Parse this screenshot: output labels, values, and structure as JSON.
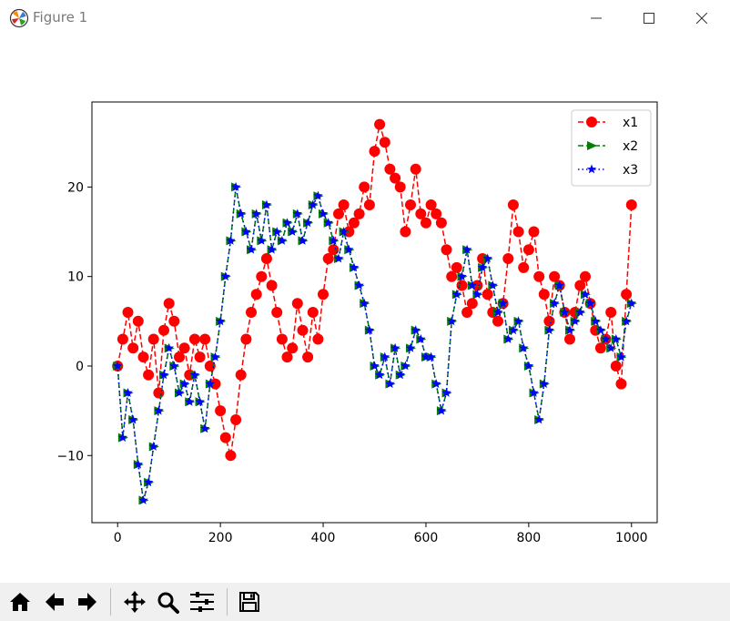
{
  "window": {
    "title": "Figure 1",
    "icon": "matplotlib-icon",
    "controls": [
      "minimize-icon",
      "maximize-icon",
      "close-icon"
    ]
  },
  "toolbar": {
    "buttons": [
      "home-icon",
      "back-arrow-icon",
      "forward-arrow-icon",
      "pan-icon",
      "zoom-icon",
      "configure-subplots-icon",
      "save-icon"
    ]
  },
  "chart_data": {
    "type": "line",
    "title": "",
    "xlabel": "",
    "ylabel": "",
    "xlim": [
      -50,
      1050
    ],
    "ylim": [
      -17.5,
      29.5
    ],
    "xticks": [
      0,
      200,
      400,
      600,
      800,
      1000
    ],
    "xtick_labels": [
      "0",
      "200",
      "400",
      "600",
      "800",
      "1000"
    ],
    "yticks": [
      -10,
      0,
      10,
      20
    ],
    "ytick_labels": [
      "−10",
      "0",
      "10",
      "20"
    ],
    "grid": false,
    "legend_position": "top-right",
    "colors": {
      "x1": "#ff0000",
      "x2": "#008000",
      "x3": "#0000ff"
    },
    "series": [
      {
        "name": "x1",
        "color": "#ff0000",
        "linestyle": "dashed",
        "marker": "circle",
        "x": [
          0,
          10,
          20,
          30,
          40,
          50,
          60,
          70,
          80,
          90,
          100,
          110,
          120,
          130,
          140,
          150,
          160,
          170,
          180,
          190,
          200,
          210,
          220,
          230,
          240,
          250,
          260,
          270,
          280,
          290,
          300,
          310,
          320,
          330,
          340,
          350,
          360,
          370,
          380,
          390,
          400,
          410,
          420,
          430,
          440,
          450,
          460,
          470,
          480,
          490,
          500,
          510,
          520,
          530,
          540,
          550,
          560,
          570,
          580,
          590,
          600,
          610,
          620,
          630,
          640,
          650,
          660,
          670,
          680,
          690,
          700,
          710,
          720,
          730,
          740,
          750,
          760,
          770,
          780,
          790,
          800,
          810,
          820,
          830,
          840,
          850,
          860,
          870,
          880,
          890,
          900,
          910,
          920,
          930,
          940,
          950,
          960,
          970,
          980,
          990,
          1000
        ],
        "y": [
          0,
          3,
          6,
          2,
          5,
          1,
          -1,
          3,
          -3,
          4,
          7,
          5,
          1,
          2,
          -1,
          3,
          1,
          3,
          0,
          -2,
          -5,
          -8,
          -10,
          -6,
          -1,
          3,
          6,
          8,
          10,
          12,
          9,
          6,
          3,
          1,
          2,
          7,
          4,
          1,
          6,
          3,
          8,
          12,
          13,
          17,
          18,
          15,
          16,
          17,
          20,
          18,
          24,
          27,
          25,
          22,
          21,
          20,
          15,
          18,
          22,
          17,
          16,
          18,
          17,
          16,
          13,
          10,
          11,
          9,
          6,
          7,
          9,
          12,
          8,
          6,
          5,
          7,
          12,
          18,
          15,
          11,
          13,
          15,
          10,
          8,
          5,
          10,
          9,
          6,
          3,
          6,
          9,
          10,
          7,
          4,
          2,
          3,
          6,
          0,
          -2,
          8,
          18
        ]
      },
      {
        "name": "x2",
        "color": "#008000",
        "linestyle": "dashed",
        "marker": "triangle-right",
        "x": [
          0,
          10,
          20,
          30,
          40,
          50,
          60,
          70,
          80,
          90,
          100,
          110,
          120,
          130,
          140,
          150,
          160,
          170,
          180,
          190,
          200,
          210,
          220,
          230,
          240,
          250,
          260,
          270,
          280,
          290,
          300,
          310,
          320,
          330,
          340,
          350,
          360,
          370,
          380,
          390,
          400,
          410,
          420,
          430,
          440,
          450,
          460,
          470,
          480,
          490,
          500,
          510,
          520,
          530,
          540,
          550,
          560,
          570,
          580,
          590,
          600,
          610,
          620,
          630,
          640,
          650,
          660,
          670,
          680,
          690,
          700,
          710,
          720,
          730,
          740,
          750,
          760,
          770,
          780,
          790,
          800,
          810,
          820,
          830,
          840,
          850,
          860,
          870,
          880,
          890,
          900,
          910,
          920,
          930,
          940,
          950,
          960,
          970,
          980,
          990,
          1000
        ],
        "y": [
          0,
          -8,
          -3,
          -6,
          -11,
          -15,
          -13,
          -9,
          -5,
          -1,
          2,
          0,
          -3,
          -2,
          -4,
          -1,
          -4,
          -7,
          -2,
          1,
          5,
          10,
          14,
          20,
          17,
          15,
          13,
          17,
          14,
          18,
          13,
          15,
          14,
          16,
          15,
          17,
          14,
          16,
          18,
          19,
          17,
          16,
          14,
          12,
          15,
          13,
          11,
          9,
          7,
          4,
          0,
          -1,
          1,
          -2,
          2,
          -1,
          0,
          2,
          4,
          3,
          1,
          1,
          -2,
          -5,
          -3,
          5,
          8,
          10,
          13,
          9,
          8,
          11,
          12,
          9,
          6,
          7,
          3,
          4,
          5,
          2,
          0,
          -3,
          -6,
          -2,
          4,
          7,
          9,
          6,
          4,
          5,
          6,
          8,
          7,
          5,
          4,
          3,
          2,
          3,
          1,
          5,
          7
        ]
      },
      {
        "name": "x3",
        "color": "#0000ff",
        "linestyle": "dotted",
        "marker": "star",
        "x": [
          0,
          10,
          20,
          30,
          40,
          50,
          60,
          70,
          80,
          90,
          100,
          110,
          120,
          130,
          140,
          150,
          160,
          170,
          180,
          190,
          200,
          210,
          220,
          230,
          240,
          250,
          260,
          270,
          280,
          290,
          300,
          310,
          320,
          330,
          340,
          350,
          360,
          370,
          380,
          390,
          400,
          410,
          420,
          430,
          440,
          450,
          460,
          470,
          480,
          490,
          500,
          510,
          520,
          530,
          540,
          550,
          560,
          570,
          580,
          590,
          600,
          610,
          620,
          630,
          640,
          650,
          660,
          670,
          680,
          690,
          700,
          710,
          720,
          730,
          740,
          750,
          760,
          770,
          780,
          790,
          800,
          810,
          820,
          830,
          840,
          850,
          860,
          870,
          880,
          890,
          900,
          910,
          920,
          930,
          940,
          950,
          960,
          970,
          980,
          990,
          1000
        ],
        "y": [
          0,
          -8,
          -3,
          -6,
          -11,
          -15,
          -13,
          -9,
          -5,
          -1,
          2,
          0,
          -3,
          -2,
          -4,
          -1,
          -4,
          -7,
          -2,
          1,
          5,
          10,
          14,
          20,
          17,
          15,
          13,
          17,
          14,
          18,
          13,
          15,
          14,
          16,
          15,
          17,
          14,
          16,
          18,
          19,
          17,
          16,
          14,
          12,
          15,
          13,
          11,
          9,
          7,
          4,
          0,
          -1,
          1,
          -2,
          2,
          -1,
          0,
          2,
          4,
          3,
          1,
          1,
          -2,
          -5,
          -3,
          5,
          8,
          10,
          13,
          9,
          8,
          11,
          12,
          9,
          6,
          7,
          3,
          4,
          5,
          2,
          0,
          -3,
          -6,
          -2,
          4,
          7,
          9,
          6,
          4,
          5,
          6,
          8,
          7,
          5,
          4,
          3,
          2,
          3,
          1,
          5,
          7
        ]
      }
    ]
  }
}
